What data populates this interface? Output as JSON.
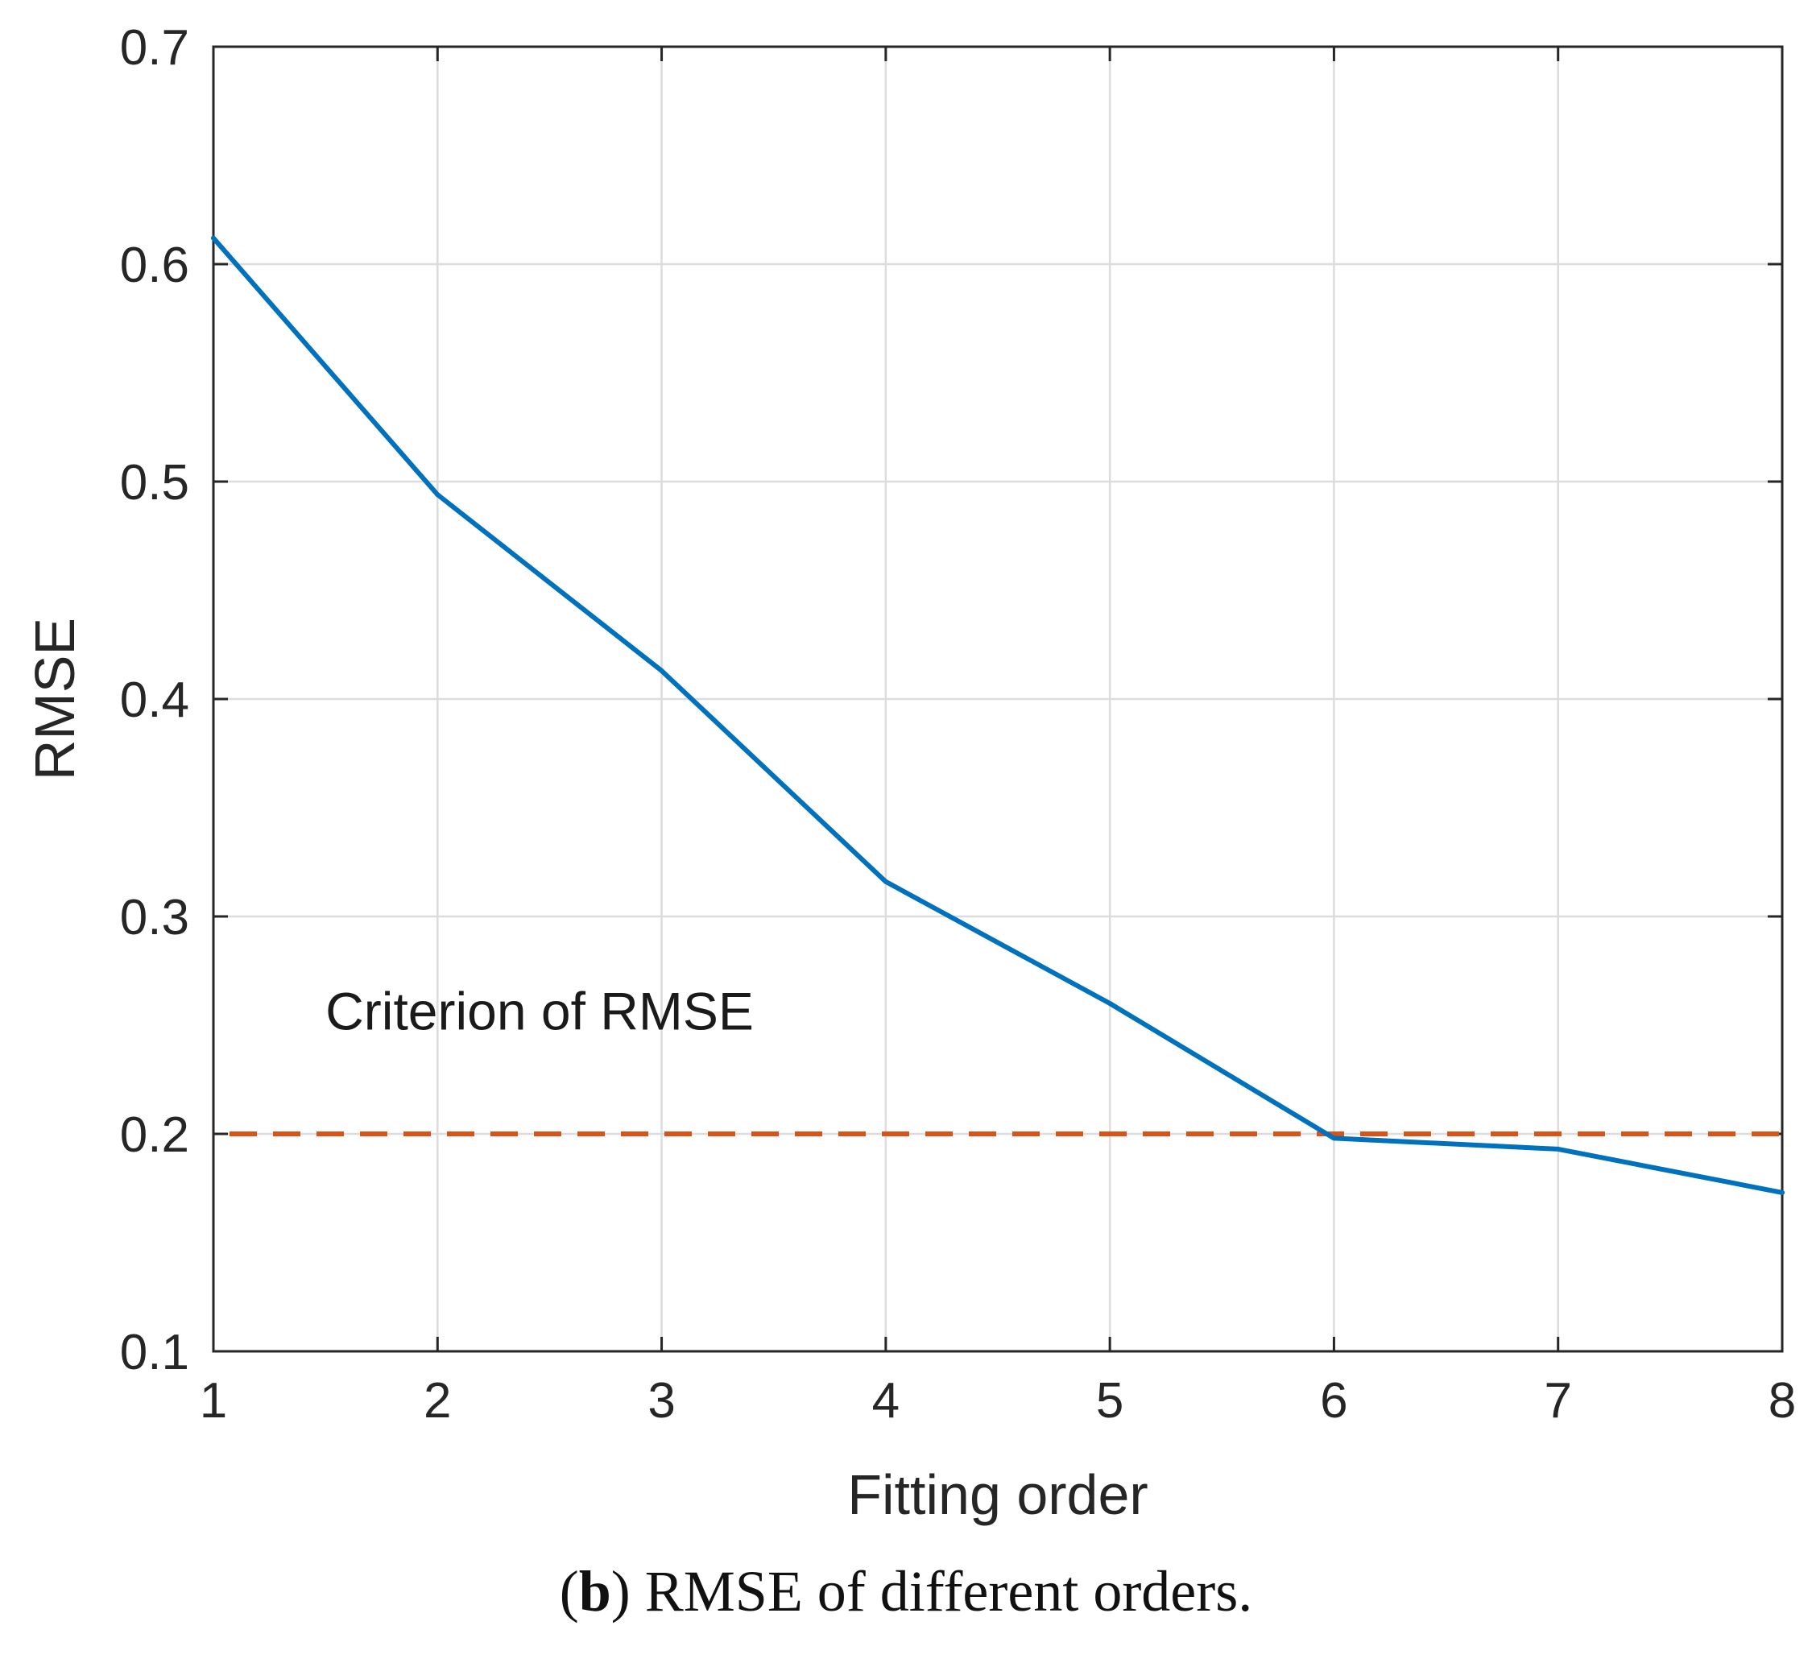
{
  "chart_data": {
    "type": "line",
    "xlabel": "Fitting order",
    "ylabel": "RMSE",
    "xlim": [
      1,
      8
    ],
    "ylim": [
      0.1,
      0.7
    ],
    "xticks": [
      "1",
      "2",
      "3",
      "4",
      "5",
      "6",
      "7",
      "8"
    ],
    "yticks": [
      "0.1",
      "0.2",
      "0.3",
      "0.4",
      "0.5",
      "0.6",
      "0.7"
    ],
    "grid": true,
    "series": [
      {
        "name": "RMSE",
        "color": "#0072BD",
        "x": [
          1,
          2,
          3,
          4,
          5,
          6,
          7,
          8
        ],
        "values": [
          0.612,
          0.494,
          0.413,
          0.316,
          0.26,
          0.198,
          0.193,
          0.173
        ]
      }
    ],
    "reference_line": {
      "name": "Criterion of RMSE",
      "y": 0.2,
      "color": "#D95319",
      "style": "dashed"
    },
    "annotation": {
      "text": "Criterion of RMSE",
      "x": 1.5,
      "y": 0.248
    }
  },
  "caption": {
    "label": "b",
    "text": "RMSE of different orders."
  }
}
